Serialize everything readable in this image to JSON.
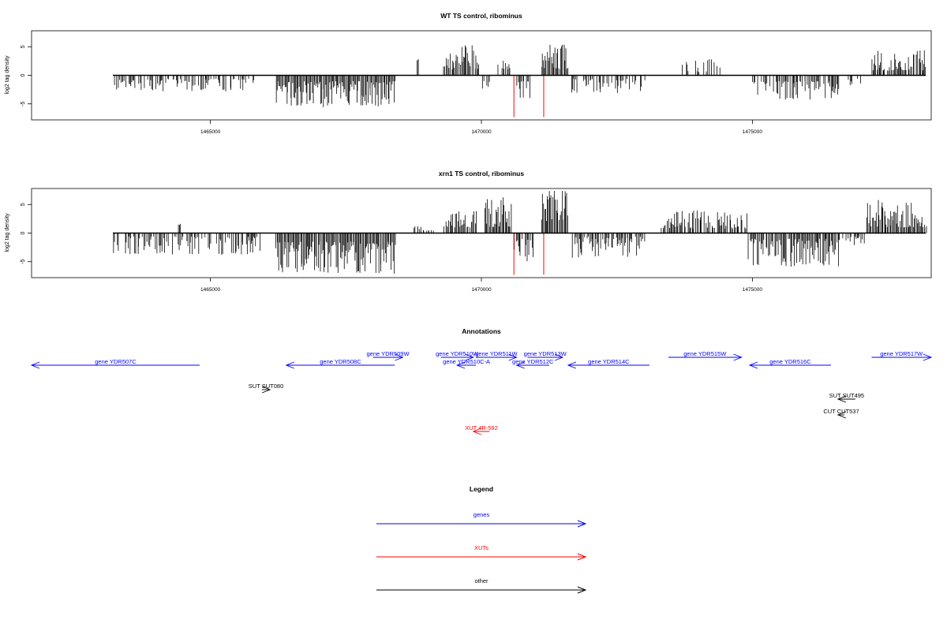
{
  "chart_data": [
    {
      "type": "bar",
      "title": "WT TS control, ribominus",
      "ylabel": "log2 tag density",
      "xlabel": "",
      "xlim": [
        1461700,
        1478300
      ],
      "ylim": [
        -7.8,
        7.8
      ],
      "yticks": [
        -5,
        0,
        5
      ],
      "ytick_labels": [
        "-5",
        "0",
        "5"
      ],
      "xticks": [
        1465000,
        1470000,
        1475000
      ],
      "xtick_labels": [
        "1465000",
        "1470000",
        "1475000"
      ],
      "data_start": 1463200,
      "data_end": 1478200,
      "colors": {
        "bars": "#000000",
        "markers": "#ff0000"
      },
      "red_markers": [
        {
          "x": 1470600,
          "y": -7.3
        },
        {
          "x": 1471150,
          "y": -7.3
        }
      ],
      "regions": [
        {
          "start": 1463200,
          "end": 1465800,
          "sign": -1,
          "min": 0.6,
          "max": 2.9,
          "density": 0.6
        },
        {
          "start": 1466200,
          "end": 1468400,
          "sign": -1,
          "min": 1.0,
          "max": 5.6,
          "density": 1.0
        },
        {
          "start": 1468800,
          "end": 1468850,
          "sign": 1,
          "min": 2.6,
          "max": 2.8,
          "density": 1.0
        },
        {
          "start": 1469300,
          "end": 1469950,
          "sign": 1,
          "min": 1.0,
          "max": 5.3,
          "density": 0.9
        },
        {
          "start": 1470000,
          "end": 1470150,
          "sign": -1,
          "min": 1.0,
          "max": 2.5,
          "density": 0.7
        },
        {
          "start": 1470300,
          "end": 1470550,
          "sign": 1,
          "min": 1.0,
          "max": 2.9,
          "density": 0.7
        },
        {
          "start": 1470650,
          "end": 1470900,
          "sign": -1,
          "min": 1.0,
          "max": 4.4,
          "density": 0.8
        },
        {
          "start": 1471100,
          "end": 1471600,
          "sign": 1,
          "min": 1.0,
          "max": 5.4,
          "density": 1.0
        },
        {
          "start": 1471650,
          "end": 1473000,
          "sign": -1,
          "min": 0.6,
          "max": 3.1,
          "density": 0.6
        },
        {
          "start": 1473700,
          "end": 1474400,
          "sign": 1,
          "min": 0.6,
          "max": 3.3,
          "density": 0.3
        },
        {
          "start": 1475000,
          "end": 1476600,
          "sign": -1,
          "min": 1.0,
          "max": 4.3,
          "density": 0.7
        },
        {
          "start": 1476700,
          "end": 1477000,
          "sign": -1,
          "min": 0.6,
          "max": 2.0,
          "density": 0.3
        },
        {
          "start": 1477200,
          "end": 1478200,
          "sign": 1,
          "min": 0.8,
          "max": 4.4,
          "density": 0.8
        }
      ]
    },
    {
      "type": "bar",
      "title": "xrn1 TS control, ribominus",
      "ylabel": "log2 tag density",
      "xlabel": "",
      "xlim": [
        1461700,
        1478300
      ],
      "ylim": [
        -7.8,
        7.8
      ],
      "yticks": [
        -5,
        0,
        5
      ],
      "ytick_labels": [
        "-5",
        "0",
        "5"
      ],
      "xticks": [
        1465000,
        1470000,
        1475000
      ],
      "xtick_labels": [
        "1465000",
        "1470000",
        "1475000"
      ],
      "data_start": 1463200,
      "data_end": 1478200,
      "colors": {
        "bars": "#000000",
        "markers": "#ff0000"
      },
      "red_markers": [
        {
          "x": 1470600,
          "y": -7.3
        },
        {
          "x": 1471150,
          "y": -7.3
        }
      ],
      "regions": [
        {
          "start": 1463200,
          "end": 1465900,
          "sign": -1,
          "min": 0.6,
          "max": 3.8,
          "density": 0.7
        },
        {
          "start": 1464400,
          "end": 1464450,
          "sign": 1,
          "min": 1.4,
          "max": 1.7,
          "density": 1.0
        },
        {
          "start": 1466200,
          "end": 1468400,
          "sign": -1,
          "min": 1.5,
          "max": 7.2,
          "density": 1.0
        },
        {
          "start": 1468700,
          "end": 1469100,
          "sign": 1,
          "min": 0.4,
          "max": 1.2,
          "density": 0.3
        },
        {
          "start": 1469300,
          "end": 1469900,
          "sign": 1,
          "min": 1.0,
          "max": 4.0,
          "density": 0.9
        },
        {
          "start": 1470050,
          "end": 1470550,
          "sign": 1,
          "min": 1.0,
          "max": 6.3,
          "density": 1.0
        },
        {
          "start": 1470600,
          "end": 1470950,
          "sign": -1,
          "min": 1.0,
          "max": 5.2,
          "density": 0.9
        },
        {
          "start": 1471100,
          "end": 1471600,
          "sign": 1,
          "min": 2.0,
          "max": 7.4,
          "density": 1.0
        },
        {
          "start": 1471650,
          "end": 1473000,
          "sign": -1,
          "min": 0.6,
          "max": 4.5,
          "density": 0.8
        },
        {
          "start": 1473300,
          "end": 1474900,
          "sign": 1,
          "min": 0.8,
          "max": 4.0,
          "density": 0.8
        },
        {
          "start": 1474900,
          "end": 1476600,
          "sign": -1,
          "min": 1.0,
          "max": 5.9,
          "density": 0.9
        },
        {
          "start": 1476600,
          "end": 1477100,
          "sign": -1,
          "min": 0.6,
          "max": 2.5,
          "density": 0.5
        },
        {
          "start": 1477100,
          "end": 1478200,
          "sign": 1,
          "min": 1.0,
          "max": 5.8,
          "density": 1.0
        }
      ]
    }
  ],
  "annotations": {
    "title": "Annotations",
    "colors": {
      "genes": "#0000ff",
      "XUTs": "#ff0000",
      "other": "#000000"
    },
    "features": [
      {
        "label": "gene YDR507C",
        "type": "genes",
        "strand": "-",
        "start": 1461700,
        "end": 1464800,
        "row": 2
      },
      {
        "label": "gene YDR508C",
        "type": "genes",
        "strand": "-",
        "start": 1466400,
        "end": 1468400,
        "row": 2
      },
      {
        "label": "gene YDR509W",
        "type": "genes",
        "strand": "+",
        "start": 1468000,
        "end": 1468550,
        "row": 1
      },
      {
        "label": "gene YDR510W",
        "type": "genes",
        "strand": "+",
        "start": 1469250,
        "end": 1469850,
        "row": 1
      },
      {
        "label": "gene YDR510C-A",
        "type": "genes",
        "strand": "-",
        "start": 1469550,
        "end": 1469900,
        "row": 2
      },
      {
        "label": "gene YDR511W",
        "type": "genes",
        "strand": "+",
        "start": 1469900,
        "end": 1470650,
        "row": 1
      },
      {
        "label": "gene YDR512C",
        "type": "genes",
        "strand": "-",
        "start": 1470650,
        "end": 1471250,
        "row": 2
      },
      {
        "label": "gene YDR513W",
        "type": "genes",
        "strand": "+",
        "start": 1470850,
        "end": 1471500,
        "row": 1
      },
      {
        "label": "gene YDR514C",
        "type": "genes",
        "strand": "-",
        "start": 1471600,
        "end": 1473100,
        "row": 2
      },
      {
        "label": "gene YDR515W",
        "type": "genes",
        "strand": "+",
        "start": 1473450,
        "end": 1474800,
        "row": 1
      },
      {
        "label": "gene YDR516C",
        "type": "genes",
        "strand": "-",
        "start": 1474950,
        "end": 1476450,
        "row": 2
      },
      {
        "label": "gene YDR517W",
        "type": "genes",
        "strand": "+",
        "start": 1477200,
        "end": 1478300,
        "row": 1
      },
      {
        "label": "SUT SUT080",
        "type": "other",
        "strand": "+",
        "start": 1465950,
        "end": 1466100,
        "row": 3
      },
      {
        "label": "SUT SUT495",
        "type": "other",
        "strand": "-",
        "start": 1476580,
        "end": 1476900,
        "row": 4
      },
      {
        "label": "CUT CUT537",
        "type": "other",
        "strand": "-",
        "start": 1476580,
        "end": 1476700,
        "row": 5
      },
      {
        "label": "XUT 4R-592",
        "type": "XUTs",
        "strand": "-",
        "start": 1469850,
        "end": 1470150,
        "row": 6
      }
    ]
  },
  "legend": {
    "title": "Legend",
    "entries": [
      {
        "label": "genes",
        "color": "#0000ff"
      },
      {
        "label": "XUTs",
        "color": "#ff0000"
      },
      {
        "label": "other",
        "color": "#000000"
      }
    ]
  }
}
